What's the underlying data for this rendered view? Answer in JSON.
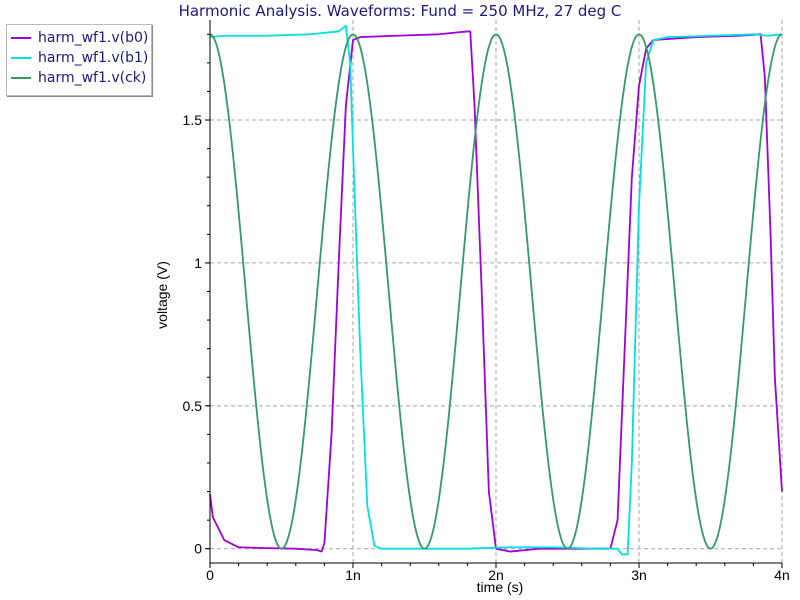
{
  "colors": {
    "b0": "#a000d8",
    "b1": "#00e0e0",
    "ck": "#339a6a",
    "grid": "#a6a6a6",
    "axis": "#000000"
  },
  "chart_data": {
    "type": "line",
    "title": "Harmonic Analysis. Waveforms: Fund = 250 MHz, 27 deg C",
    "xlabel": "time (s)",
    "ylabel": "voltage (V)",
    "xlim": [
      0,
      4e-09
    ],
    "ylim": [
      -0.05,
      1.85
    ],
    "x_ticks": [
      0,
      1e-09,
      2e-09,
      3e-09,
      4e-09
    ],
    "x_tick_labels": [
      "0",
      "1n",
      "2n",
      "3n",
      "4n"
    ],
    "y_ticks": [
      0,
      0.5,
      1,
      1.5
    ],
    "y_tick_labels": [
      "0",
      "0.5",
      "1",
      "1.5"
    ],
    "grid": true,
    "legend_position": "outside-top-left",
    "series": [
      {
        "name": "harm_wf1.v(b0)",
        "color_key": "b0",
        "points": [
          [
            0.0,
            0.19
          ],
          [
            2e-11,
            0.11
          ],
          [
            1e-10,
            0.03
          ],
          [
            2e-10,
            0.005
          ],
          [
            4e-10,
            0.002
          ],
          [
            6e-10,
            0.0
          ],
          [
            7.5e-10,
            -0.005
          ],
          [
            7.8e-10,
            -0.01
          ],
          [
            8e-10,
            0.02
          ],
          [
            8.5e-10,
            0.4
          ],
          [
            9e-10,
            1.0
          ],
          [
            9.5e-10,
            1.55
          ],
          [
            1e-09,
            1.78
          ],
          [
            1.05e-09,
            1.79
          ],
          [
            1.3e-09,
            1.795
          ],
          [
            1.6e-09,
            1.8
          ],
          [
            1.8e-09,
            1.81
          ],
          [
            1.82e-09,
            1.81
          ],
          [
            1.85e-09,
            1.55
          ],
          [
            1.9e-09,
            0.9
          ],
          [
            1.95e-09,
            0.2
          ],
          [
            2e-09,
            0.0
          ],
          [
            2.1e-09,
            -0.01
          ],
          [
            2.3e-09,
            0.0
          ],
          [
            2.6e-09,
            0.0
          ],
          [
            2.8e-09,
            0.0
          ],
          [
            2.85e-09,
            0.1
          ],
          [
            2.9e-09,
            0.7
          ],
          [
            2.95e-09,
            1.3
          ],
          [
            3e-09,
            1.62
          ],
          [
            3.05e-09,
            1.75
          ],
          [
            3.1e-09,
            1.78
          ],
          [
            3.4e-09,
            1.79
          ],
          [
            3.7e-09,
            1.795
          ],
          [
            3.85e-09,
            1.8
          ],
          [
            3.88e-09,
            1.65
          ],
          [
            3.92e-09,
            1.1
          ],
          [
            3.95e-09,
            0.6
          ],
          [
            4e-09,
            0.2
          ]
        ]
      },
      {
        "name": "harm_wf1.v(b1)",
        "color_key": "b1",
        "points": [
          [
            0.0,
            1.79
          ],
          [
            1e-10,
            1.795
          ],
          [
            4e-10,
            1.795
          ],
          [
            7e-10,
            1.8
          ],
          [
            9e-10,
            1.81
          ],
          [
            9.5e-10,
            1.83
          ],
          [
            9.8e-10,
            1.7
          ],
          [
            1e-09,
            1.4
          ],
          [
            1.05e-09,
            0.7
          ],
          [
            1.1e-09,
            0.15
          ],
          [
            1.15e-09,
            0.01
          ],
          [
            1.2e-09,
            0.0
          ],
          [
            1.5e-09,
            0.0
          ],
          [
            1.8e-09,
            0.0
          ],
          [
            2.1e-09,
            0.005
          ],
          [
            2.4e-09,
            0.005
          ],
          [
            2.7e-09,
            0.0
          ],
          [
            2.85e-09,
            0.0
          ],
          [
            2.88e-09,
            -0.02
          ],
          [
            2.92e-09,
            -0.02
          ],
          [
            2.95e-09,
            0.3
          ],
          [
            3e-09,
            1.2
          ],
          [
            3.05e-09,
            1.7
          ],
          [
            3.1e-09,
            1.78
          ],
          [
            3.2e-09,
            1.79
          ],
          [
            3.5e-09,
            1.795
          ],
          [
            3.8e-09,
            1.8
          ],
          [
            3.9e-09,
            1.795
          ],
          [
            4e-09,
            1.8
          ]
        ]
      },
      {
        "name": "harm_wf1.v(ck)",
        "color_key": "ck",
        "waveform": {
          "shape": "cosine",
          "offset": 0.9,
          "amplitude": 0.9,
          "period": 1e-09,
          "phase": 0
        }
      }
    ]
  }
}
